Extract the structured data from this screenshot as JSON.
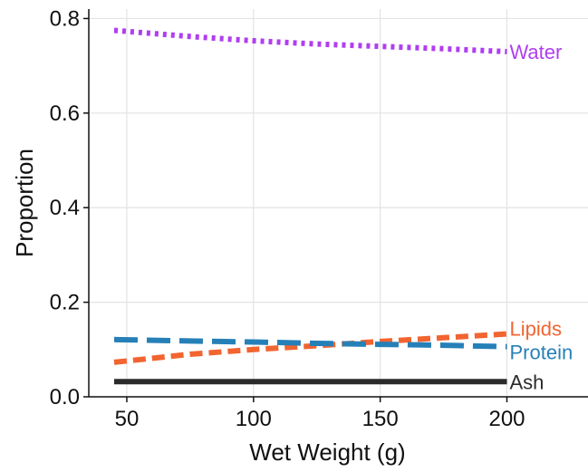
{
  "chart_data": {
    "type": "line",
    "title": "",
    "xlabel": "Wet Weight (g)",
    "ylabel": "Proportion",
    "xlim": [
      35,
      232
    ],
    "ylim": [
      0,
      0.82
    ],
    "x_ticks": [
      50,
      100,
      150,
      200
    ],
    "y_ticks": [
      0.0,
      0.2,
      0.4,
      0.6,
      0.8
    ],
    "x_tick_labels": [
      "50",
      "100",
      "150",
      "200"
    ],
    "y_tick_labels": [
      "0.0",
      "0.2",
      "0.4",
      "0.6",
      "0.8"
    ],
    "grid": true,
    "legend": "direct labels at right end of lines",
    "series": [
      {
        "name": "Water",
        "color": "#b03ef0",
        "dash": "dotted",
        "x": [
          45,
          75,
          100,
          125,
          150,
          175,
          200
        ],
        "y": [
          0.775,
          0.762,
          0.753,
          0.746,
          0.741,
          0.736,
          0.73
        ]
      },
      {
        "name": "Lipids",
        "color": "#f26430",
        "dash": "short-dashed",
        "x": [
          45,
          75,
          100,
          125,
          150,
          175,
          200
        ],
        "y": [
          0.073,
          0.09,
          0.1,
          0.108,
          0.117,
          0.125,
          0.133
        ]
      },
      {
        "name": "Protein",
        "color": "#2680b8",
        "dash": "long-dashed",
        "x": [
          45,
          75,
          100,
          125,
          150,
          175,
          200
        ],
        "y": [
          0.121,
          0.118,
          0.116,
          0.113,
          0.111,
          0.109,
          0.106
        ]
      },
      {
        "name": "Ash",
        "color": "#2b2b2b",
        "dash": "solid",
        "x": [
          45,
          75,
          100,
          125,
          150,
          175,
          200
        ],
        "y": [
          0.032,
          0.032,
          0.032,
          0.032,
          0.032,
          0.032,
          0.032
        ]
      }
    ]
  }
}
